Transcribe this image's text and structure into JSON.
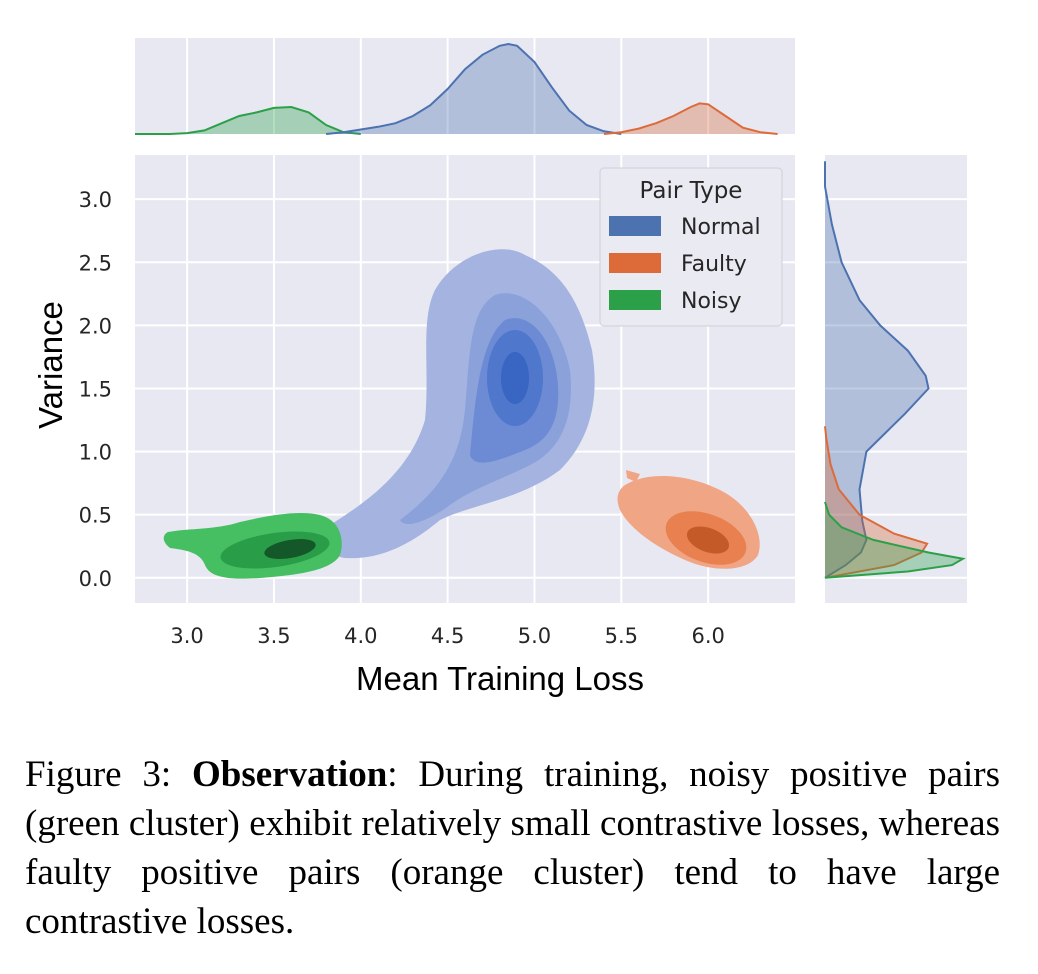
{
  "chart_data": {
    "type": "joint-kde",
    "xlabel": "Mean Training Loss",
    "ylabel": "Variance",
    "xlim": [
      2.7,
      6.5
    ],
    "ylim": [
      -0.2,
      3.35
    ],
    "xticks": [
      "3.0",
      "3.5",
      "4.0",
      "4.5",
      "5.0",
      "5.5",
      "6.0"
    ],
    "yticks": [
      "0.0",
      "0.5",
      "1.0",
      "1.5",
      "2.0",
      "2.5",
      "3.0"
    ],
    "grid": true,
    "legend": {
      "title": "Pair Type",
      "placement": "top-right",
      "entries": [
        {
          "name": "Normal",
          "color": "#4c72b0"
        },
        {
          "name": "Faulty",
          "color": "#dd6b3a"
        },
        {
          "name": "Noisy",
          "color": "#2ca048"
        }
      ]
    },
    "series": [
      {
        "name": "Normal",
        "color": "#4c72b0",
        "mode_x": 4.85,
        "mode_y": 1.55,
        "x_range": [
          3.85,
          5.35
        ],
        "y_range": [
          0.1,
          2.55
        ]
      },
      {
        "name": "Faulty",
        "color": "#dd6b3a",
        "mode_x": 5.97,
        "mode_y": 0.27,
        "x_range": [
          5.45,
          6.25
        ],
        "y_range": [
          0.05,
          0.8
        ]
      },
      {
        "name": "Noisy",
        "color": "#2ca048",
        "mode_x": 3.58,
        "mode_y": 0.2,
        "x_range": [
          2.95,
          3.85
        ],
        "y_range": [
          0.0,
          0.5
        ]
      }
    ],
    "marginal_x": {
      "Normal": {
        "x": [
          3.8,
          3.9,
          4.0,
          4.1,
          4.2,
          4.3,
          4.4,
          4.5,
          4.6,
          4.7,
          4.8,
          4.85,
          4.9,
          5.0,
          5.1,
          5.2,
          5.3,
          5.4,
          5.5
        ],
        "density": [
          0.0,
          0.02,
          0.05,
          0.08,
          0.12,
          0.2,
          0.32,
          0.5,
          0.72,
          0.88,
          0.98,
          1.0,
          0.98,
          0.8,
          0.52,
          0.26,
          0.1,
          0.03,
          0.0
        ]
      },
      "Faulty": {
        "x": [
          5.4,
          5.5,
          5.6,
          5.7,
          5.8,
          5.9,
          5.95,
          6.0,
          6.1,
          6.2,
          6.3,
          6.4
        ],
        "density": [
          0.0,
          0.02,
          0.06,
          0.12,
          0.2,
          0.3,
          0.34,
          0.33,
          0.2,
          0.07,
          0.02,
          0.0
        ]
      },
      "Noisy": {
        "x": [
          2.7,
          2.9,
          3.0,
          3.1,
          3.2,
          3.3,
          3.4,
          3.5,
          3.6,
          3.7,
          3.8,
          3.9,
          4.0
        ],
        "density": [
          0.0,
          0.0,
          0.01,
          0.04,
          0.12,
          0.2,
          0.24,
          0.29,
          0.3,
          0.24,
          0.1,
          0.02,
          0.0
        ]
      }
    },
    "marginal_y": {
      "Normal": {
        "y": [
          0.0,
          0.1,
          0.2,
          0.3,
          0.45,
          0.7,
          1.0,
          1.3,
          1.5,
          1.6,
          1.8,
          2.0,
          2.2,
          2.5,
          2.8,
          3.1,
          3.3
        ],
        "density": [
          0.0,
          0.15,
          0.26,
          0.3,
          0.27,
          0.25,
          0.3,
          0.58,
          0.75,
          0.73,
          0.6,
          0.4,
          0.25,
          0.12,
          0.05,
          0.0,
          0.0
        ]
      },
      "Faulty": {
        "y": [
          0.0,
          0.1,
          0.2,
          0.27,
          0.35,
          0.5,
          0.7,
          0.9,
          1.1,
          1.2
        ],
        "density": [
          0.0,
          0.5,
          0.7,
          0.74,
          0.5,
          0.25,
          0.1,
          0.04,
          0.01,
          0.0
        ]
      },
      "Noisy": {
        "y": [
          0.0,
          0.05,
          0.1,
          0.15,
          0.2,
          0.3,
          0.4,
          0.5,
          0.6
        ],
        "density": [
          0.0,
          0.6,
          0.92,
          1.0,
          0.75,
          0.35,
          0.12,
          0.03,
          0.0
        ]
      }
    }
  },
  "caption": {
    "label": "Figure 3:",
    "bold": "Observation",
    "text": ": During training, noisy positive pairs (green cluster) exhibit relatively small contrastive losses, whereas faulty positive pairs (orange cluster) tend to have large contrastive losses."
  }
}
